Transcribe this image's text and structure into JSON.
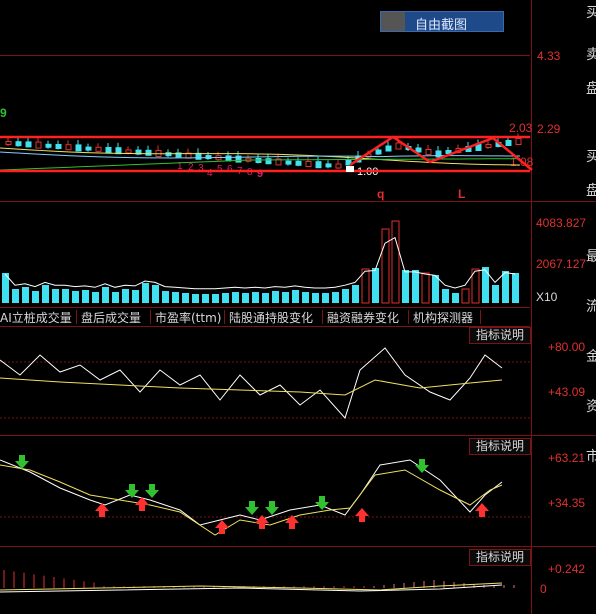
{
  "toolbar": {
    "capture_label": "自由截图"
  },
  "price_axis": {
    "top": "4.33",
    "mid": "2.29",
    "hi_marker": "2.03",
    "lo_marker": "1.00",
    "lo_marker_right": "1.08",
    "left_marker": "9"
  },
  "wave_labels": {
    "q": "q",
    "l": "L"
  },
  "seq_labels": [
    "1",
    "2",
    "3",
    "4",
    "5",
    "6",
    "7",
    "8",
    "9"
  ],
  "volume_axis": {
    "top": "4083.827",
    "mid": "2067.127",
    "unit": "X10"
  },
  "tabs": [
    "AI立桩成交量",
    "盘后成交量",
    "市盈率(ttm)",
    "陆股通持股变化",
    "融资融券变化",
    "机构探测器"
  ],
  "indicator_button": "指标说明",
  "panel1_axis": {
    "top": "+80.00",
    "mid": "+43.09"
  },
  "panel2_axis": {
    "top": "+63.21",
    "mid": "+34.35"
  },
  "panel3_axis": {
    "top": "+0.242",
    "mid": "0"
  },
  "right_edge_chars": [
    "买",
    "卖",
    "盘",
    "买",
    "盘",
    "最",
    "流",
    "金",
    "资",
    "市"
  ],
  "colors": {
    "grid": "#7a1414",
    "up": "#e03030",
    "down": "#40e0f0",
    "yellow": "#f0e060",
    "green": "#30c030",
    "pink": "#e01870"
  }
}
